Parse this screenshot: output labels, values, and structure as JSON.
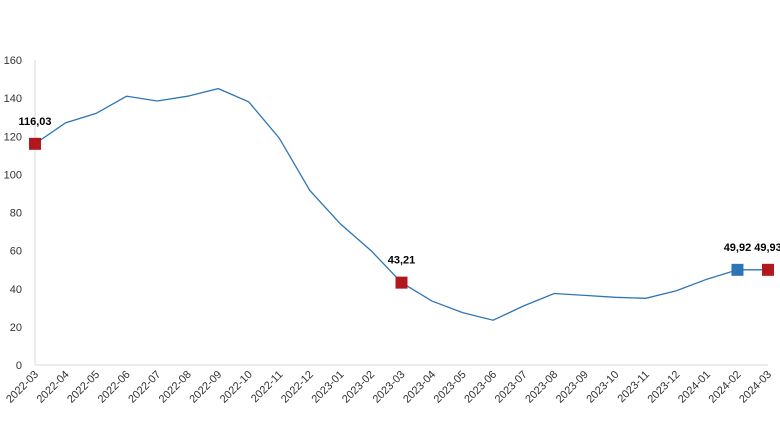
{
  "chart_data": {
    "type": "line",
    "title": "",
    "xlabel": "",
    "ylabel": "",
    "ylim": [
      0,
      160
    ],
    "yticks": [
      0,
      20,
      40,
      60,
      80,
      100,
      120,
      140,
      160
    ],
    "grid": false,
    "categories": [
      "2022-03",
      "2022-04",
      "2022-05",
      "2022-06",
      "2022-07",
      "2022-08",
      "2022-09",
      "2022-10",
      "2022-11",
      "2022-12",
      "2023-01",
      "2023-02",
      "2023-03",
      "2023-04",
      "2023-05",
      "2023-06",
      "2023-07",
      "2023-08",
      "2023-09",
      "2023-10",
      "2023-11",
      "2023-12",
      "2024-01",
      "2024-02",
      "2024-03"
    ],
    "series": [
      {
        "color": "#2e75b6",
        "values": [
          116.03,
          127,
          132,
          141,
          138.5,
          141,
          145,
          138,
          119,
          91.5,
          74,
          60,
          43.21,
          33.5,
          27.5,
          23.5,
          31,
          37.5,
          36.5,
          35.5,
          35,
          39,
          45,
          49.92,
          49.93
        ]
      }
    ],
    "markers": [
      {
        "index": 0,
        "label": "116,03",
        "color": "#b0181d"
      },
      {
        "index": 12,
        "label": "43,21",
        "color": "#b0181d"
      },
      {
        "index": 23,
        "label": "49,92",
        "color": "#2e75b6"
      },
      {
        "index": 24,
        "label": "49,93",
        "color": "#b0181d"
      }
    ],
    "colors": {
      "axis": "#d9d9d9",
      "line": "#2e75b6",
      "highlight": "#b0181d"
    }
  }
}
